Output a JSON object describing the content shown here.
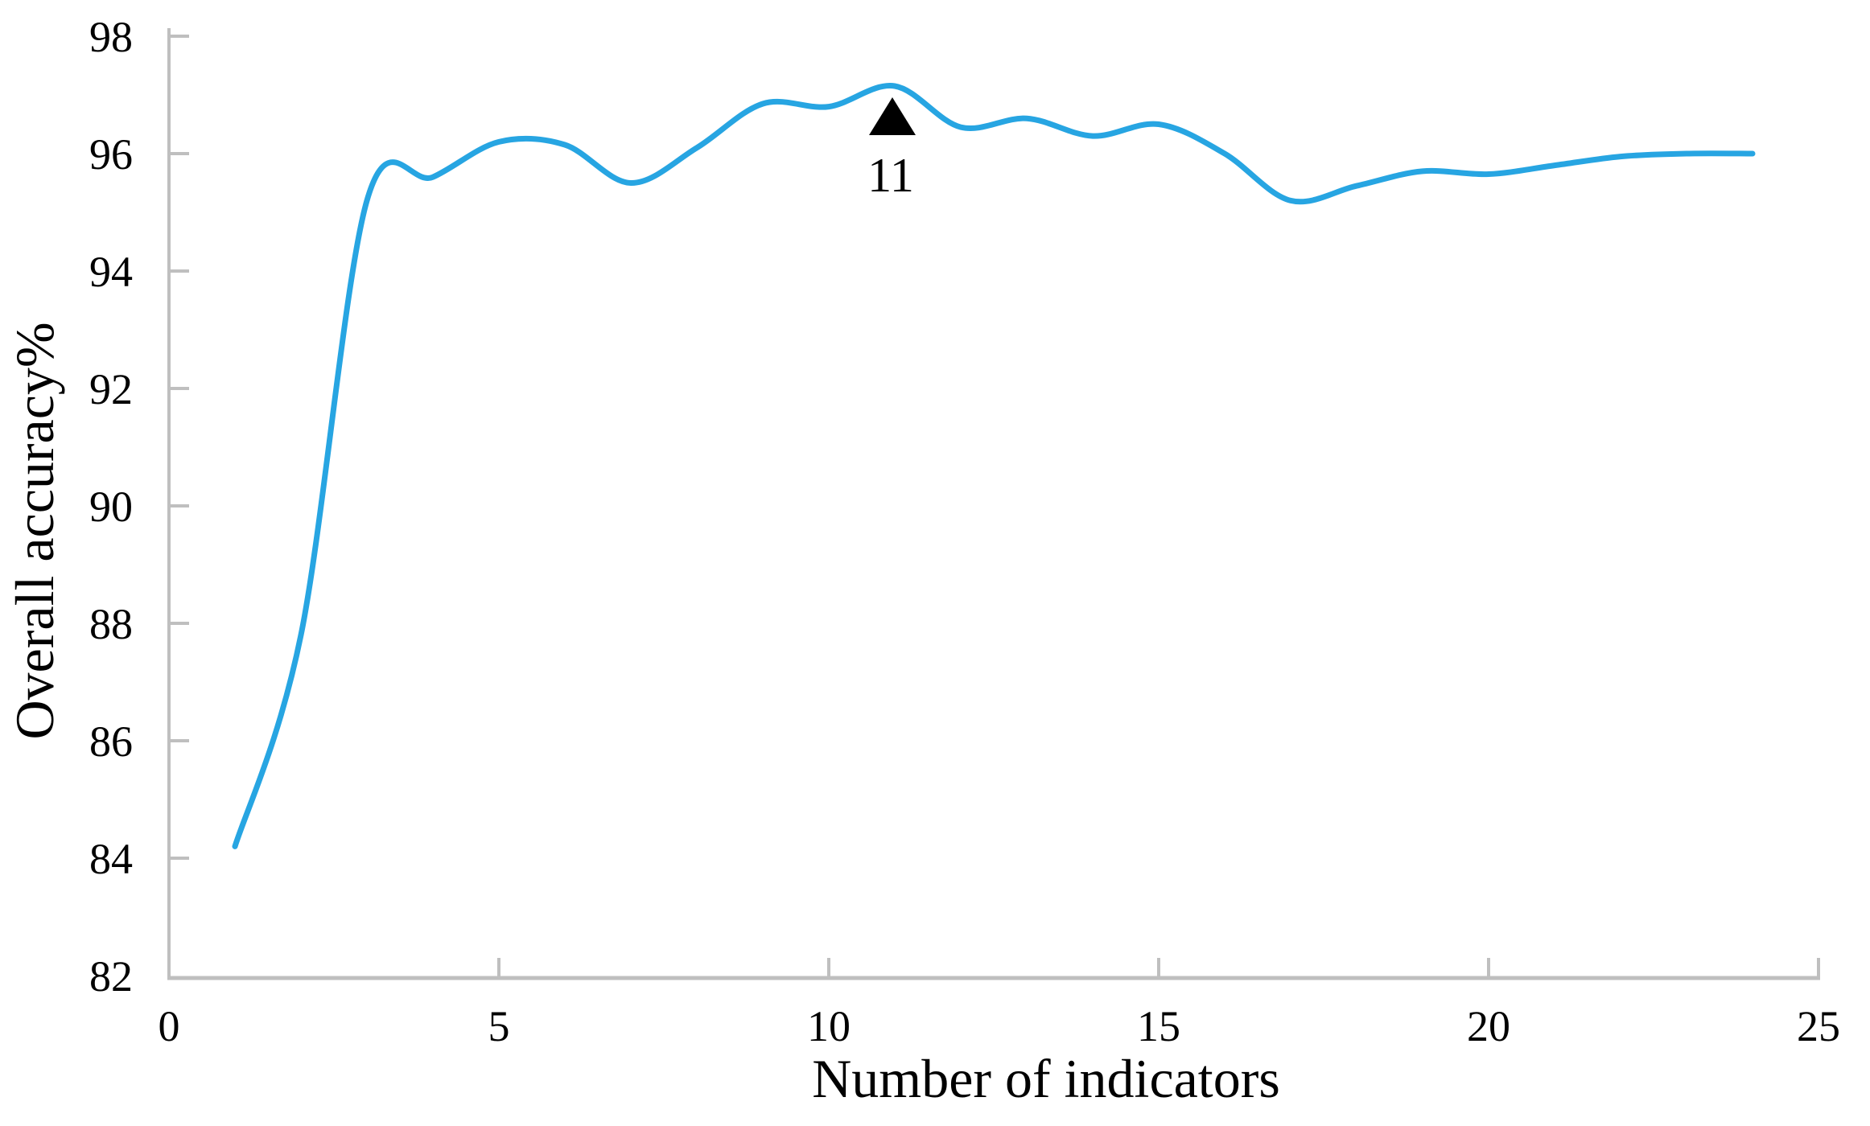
{
  "chart_data": {
    "type": "line",
    "title": "",
    "xlabel": "Number of indicators",
    "ylabel": "Overall accuracy%",
    "x": [
      1,
      2,
      3,
      4,
      5,
      6,
      7,
      8,
      9,
      10,
      11,
      12,
      13,
      14,
      15,
      16,
      17,
      18,
      19,
      20,
      21,
      22,
      23,
      24
    ],
    "y": [
      84.2,
      87.8,
      95.2,
      95.6,
      96.2,
      96.15,
      95.5,
      96.1,
      96.85,
      96.8,
      97.15,
      96.45,
      96.6,
      96.3,
      96.5,
      96.0,
      95.2,
      95.45,
      95.7,
      95.65,
      95.8,
      95.95,
      96.0,
      96.0
    ],
    "xlim": [
      0,
      25
    ],
    "ylim": [
      82,
      98
    ],
    "x_ticks": [
      0,
      5,
      10,
      15,
      20,
      25
    ],
    "y_ticks": [
      82,
      84,
      86,
      88,
      90,
      92,
      94,
      96,
      98
    ],
    "grid": false,
    "legend": null,
    "line_color": "#27A5E2",
    "axis_color": "#BFBFBF",
    "text_color": "#000000",
    "annotation": {
      "x": 11,
      "y": 97.15,
      "label": "11",
      "marker": "triangle-up",
      "marker_color": "#000000"
    }
  }
}
